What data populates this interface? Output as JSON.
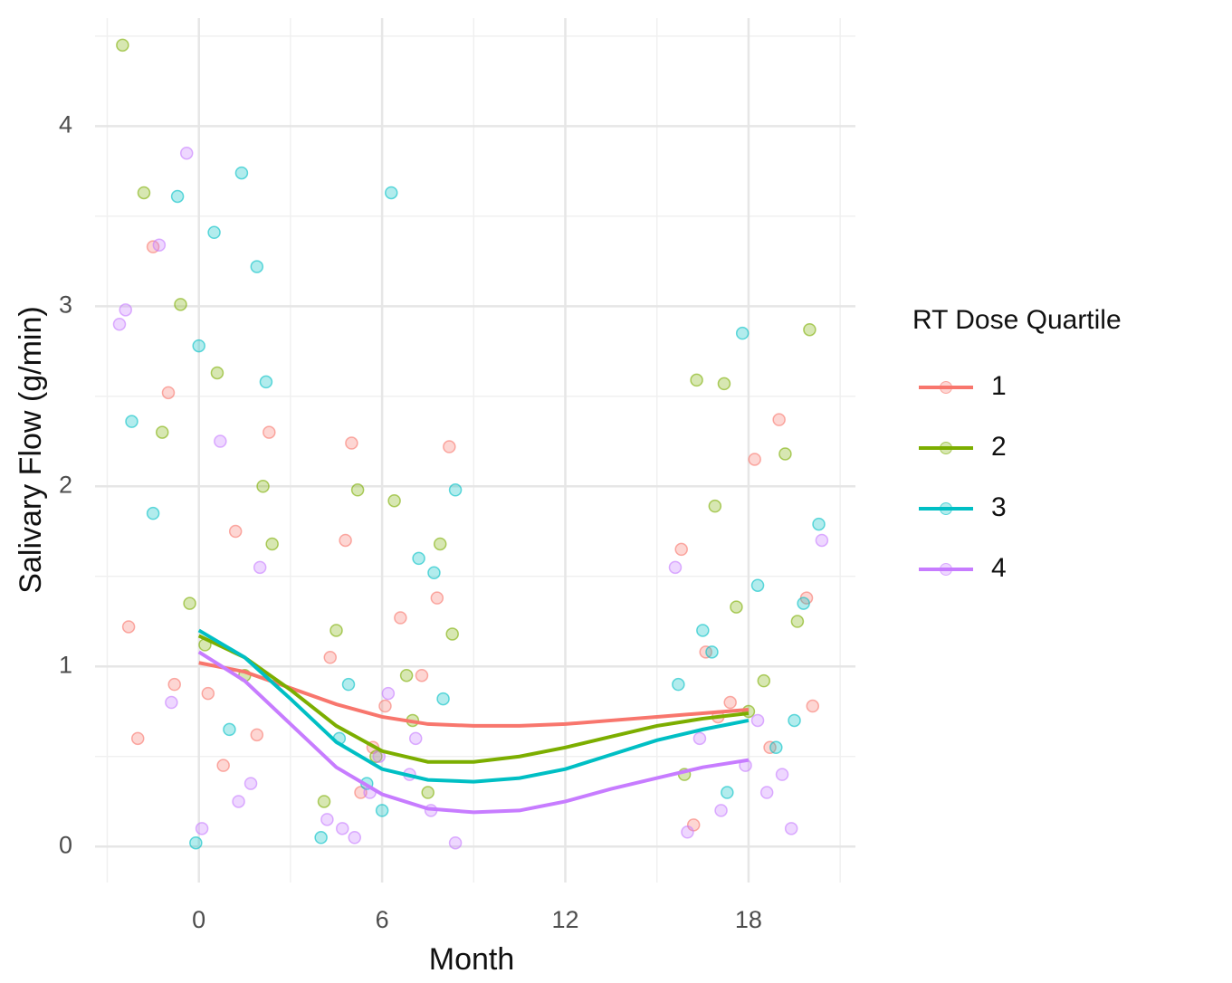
{
  "chart_data": {
    "type": "scatter_smooth",
    "x_label": "Month",
    "y_label": "Salivary Flow (g/min)",
    "legend_title": "RT Dose Quartile",
    "legend": "right",
    "grid": true,
    "xlim": [
      -3.4,
      21.5
    ],
    "ylim": [
      -0.2,
      4.6
    ],
    "xticks": [
      0,
      6,
      12,
      18
    ],
    "yticks": [
      0,
      1,
      2,
      3,
      4
    ],
    "minor_xticks": [
      -3,
      3,
      9,
      15,
      21
    ],
    "minor_yticks": [
      0.5,
      1.5,
      2.5,
      3.5,
      4.5
    ],
    "series": [
      {
        "name": "1",
        "color": "#F8766D",
        "x": [
          0,
          1.5,
          3,
          4.5,
          6,
          7.5,
          9,
          10.5,
          12,
          13.5,
          15,
          16.5,
          18
        ],
        "values": [
          1.02,
          0.97,
          0.88,
          0.79,
          0.72,
          0.68,
          0.67,
          0.67,
          0.68,
          0.7,
          0.72,
          0.74,
          0.76
        ],
        "points_x": [
          -2.3,
          -1.5,
          -0.8,
          0.3,
          1.2,
          1.9,
          2.3,
          -1.0,
          0.8,
          -2.0,
          4.3,
          5.0,
          5.7,
          6.6,
          7.3,
          8.2,
          4.8,
          7.8,
          6.1,
          5.3,
          15.8,
          16.6,
          17.4,
          18.2,
          19.0,
          19.9,
          17.0,
          18.7,
          20.1,
          16.2
        ],
        "points_y": [
          1.22,
          3.33,
          0.9,
          0.85,
          1.75,
          0.62,
          2.3,
          2.52,
          0.45,
          0.6,
          1.05,
          2.24,
          0.55,
          1.27,
          0.95,
          2.22,
          1.7,
          1.38,
          0.78,
          0.3,
          1.65,
          1.08,
          0.8,
          2.15,
          2.37,
          1.38,
          0.72,
          0.55,
          0.78,
          0.12
        ]
      },
      {
        "name": "2",
        "color": "#7CAE00",
        "x": [
          0,
          1.5,
          3,
          4.5,
          6,
          7.5,
          9,
          10.5,
          12,
          13.5,
          15,
          16.5,
          18
        ],
        "values": [
          1.17,
          1.05,
          0.87,
          0.67,
          0.53,
          0.47,
          0.47,
          0.5,
          0.55,
          0.61,
          0.67,
          0.71,
          0.74
        ],
        "points_x": [
          -2.5,
          -1.8,
          -0.6,
          0.2,
          1.5,
          2.1,
          -1.2,
          0.6,
          2.4,
          -0.3,
          4.5,
          5.2,
          6.4,
          7.0,
          7.9,
          8.3,
          5.8,
          4.1,
          6.8,
          7.5,
          16.3,
          16.9,
          17.6,
          18.5,
          19.2,
          20.0,
          17.2,
          18.0,
          19.6,
          15.9
        ],
        "points_y": [
          4.45,
          3.63,
          3.01,
          1.12,
          0.95,
          2.0,
          2.3,
          2.63,
          1.68,
          1.35,
          1.2,
          1.98,
          1.92,
          0.7,
          1.68,
          1.18,
          0.5,
          0.25,
          0.95,
          0.3,
          2.59,
          1.89,
          1.33,
          0.92,
          2.18,
          2.87,
          2.57,
          0.75,
          1.25,
          0.4
        ]
      },
      {
        "name": "3",
        "color": "#00BFC4",
        "x": [
          0,
          1.5,
          3,
          4.5,
          6,
          7.5,
          9,
          10.5,
          12,
          13.5,
          15,
          16.5,
          18
        ],
        "values": [
          1.2,
          1.05,
          0.82,
          0.58,
          0.43,
          0.37,
          0.36,
          0.38,
          0.43,
          0.51,
          0.59,
          0.65,
          0.7
        ],
        "points_x": [
          -2.2,
          -0.7,
          0.0,
          1.4,
          1.9,
          -1.5,
          0.5,
          2.2,
          -0.1,
          1.0,
          4.0,
          4.9,
          6.3,
          7.2,
          8.4,
          5.5,
          7.7,
          6.0,
          4.6,
          8.0,
          15.7,
          16.5,
          17.8,
          18.3,
          19.5,
          20.3,
          16.8,
          17.3,
          18.9,
          19.8
        ],
        "points_y": [
          2.36,
          3.61,
          2.78,
          3.74,
          3.22,
          1.85,
          3.41,
          2.58,
          0.02,
          0.65,
          0.05,
          0.9,
          3.63,
          1.6,
          1.98,
          0.35,
          1.52,
          0.2,
          0.6,
          0.82,
          0.9,
          1.2,
          2.85,
          1.45,
          0.7,
          1.79,
          1.08,
          0.3,
          0.55,
          1.35
        ]
      },
      {
        "name": "4",
        "color": "#C77CFF",
        "x": [
          0,
          1.5,
          3,
          4.5,
          6,
          7.5,
          9,
          10.5,
          12,
          13.5,
          15,
          16.5,
          18
        ],
        "values": [
          1.08,
          0.92,
          0.68,
          0.44,
          0.29,
          0.21,
          0.19,
          0.2,
          0.25,
          0.32,
          0.38,
          0.44,
          0.48
        ],
        "points_x": [
          -2.6,
          -2.4,
          -0.4,
          -1.3,
          0.7,
          1.3,
          2.0,
          -0.9,
          0.1,
          1.7,
          4.2,
          5.1,
          6.2,
          6.9,
          7.6,
          8.4,
          5.6,
          4.7,
          7.1,
          5.9,
          15.6,
          16.4,
          17.1,
          17.9,
          18.6,
          19.4,
          20.4,
          16.0,
          18.3,
          19.1
        ],
        "points_y": [
          2.9,
          2.98,
          3.85,
          3.34,
          2.25,
          0.25,
          1.55,
          0.8,
          0.1,
          0.35,
          0.15,
          0.05,
          0.85,
          0.4,
          0.2,
          0.02,
          0.3,
          0.1,
          0.6,
          0.5,
          1.55,
          0.6,
          0.2,
          0.45,
          0.3,
          0.1,
          1.7,
          0.08,
          0.7,
          0.4
        ]
      }
    ]
  }
}
